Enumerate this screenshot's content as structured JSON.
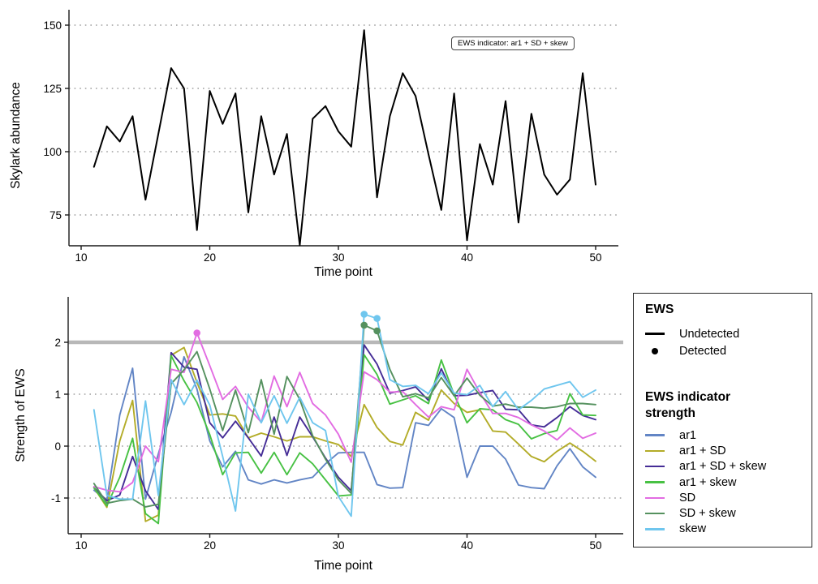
{
  "chart_data": [
    {
      "type": "line",
      "panel": "top",
      "title": "",
      "xlabel": "Time point",
      "ylabel": "Skylark abundance",
      "annotation": "EWS indicator: ar1 + SD + skew",
      "xticks": [
        10,
        20,
        30,
        40,
        50
      ],
      "yticks": [
        75,
        100,
        125,
        150
      ],
      "xlim": [
        9,
        52
      ],
      "ylim": [
        63,
        152
      ],
      "grid": "dotted-horizontal",
      "legend_position": "none",
      "x": [
        11,
        12,
        13,
        14,
        15,
        16,
        17,
        18,
        19,
        20,
        21,
        22,
        23,
        24,
        25,
        26,
        27,
        28,
        29,
        30,
        31,
        32,
        33,
        34,
        35,
        36,
        37,
        38,
        39,
        40,
        41,
        42,
        43,
        44,
        45,
        46,
        47,
        48,
        49,
        50
      ],
      "series": [
        {
          "name": "Skylark abundance",
          "color": "#000000",
          "values": [
            94,
            110,
            104,
            114,
            81,
            107,
            133,
            125,
            69,
            124,
            111,
            123,
            76,
            114,
            91,
            107,
            63,
            113,
            118,
            108,
            102,
            148,
            82,
            114,
            131,
            122,
            99,
            77,
            123,
            65,
            103,
            87,
            120,
            72,
            115,
            91,
            83,
            89,
            131,
            87
          ]
        }
      ]
    },
    {
      "type": "line",
      "panel": "bottom",
      "title": "",
      "xlabel": "Time point",
      "ylabel": "Strength of EWS",
      "xticks": [
        10,
        20,
        30,
        40,
        50
      ],
      "yticks": [
        -1,
        0,
        1,
        2
      ],
      "xlim": [
        9,
        52
      ],
      "ylim": [
        -1.7,
        2.8
      ],
      "grid": "dotted-horizontal",
      "threshold": 2,
      "threshold_color": "#b8b8b8",
      "legend_position": "right",
      "x": [
        11,
        12,
        13,
        14,
        15,
        16,
        17,
        18,
        19,
        20,
        21,
        22,
        23,
        24,
        25,
        26,
        27,
        28,
        29,
        30,
        31,
        32,
        33,
        34,
        35,
        36,
        37,
        38,
        39,
        40,
        41,
        42,
        43,
        44,
        45,
        46,
        47,
        48,
        49,
        50
      ],
      "series": [
        {
          "name": "ar1",
          "color": "#6285c5",
          "values": [
            -0.85,
            -1.05,
            0.6,
            1.5,
            -1.02,
            -0.15,
            0.65,
            1.72,
            1.1,
            0.1,
            -0.4,
            -0.1,
            -0.65,
            -0.73,
            -0.65,
            -0.71,
            -0.65,
            -0.6,
            -0.34,
            -0.13,
            -0.12,
            -0.12,
            -0.74,
            -0.81,
            -0.8,
            0.45,
            0.4,
            0.72,
            0.55,
            -0.6,
            0.0,
            0.0,
            -0.25,
            -0.75,
            -0.8,
            -0.82,
            -0.38,
            -0.05,
            -0.4,
            -0.6
          ]
        },
        {
          "name": "ar1 + SD",
          "color": "#b3ac28",
          "values": [
            -0.8,
            -1.18,
            0.1,
            0.88,
            -1.45,
            -1.33,
            1.75,
            1.9,
            1.23,
            0.6,
            0.62,
            0.58,
            0.16,
            0.25,
            0.18,
            0.1,
            0.18,
            0.18,
            0.1,
            0.03,
            -0.2,
            0.8,
            0.36,
            0.09,
            0.02,
            0.65,
            0.5,
            1.08,
            0.82,
            0.65,
            0.7,
            0.29,
            0.27,
            0.04,
            -0.2,
            -0.3,
            -0.1,
            0.06,
            -0.1,
            -0.29
          ]
        },
        {
          "name": "ar1 + SD + skew",
          "color": "#452d96",
          "values": [
            -0.8,
            -1.05,
            -0.94,
            -0.2,
            -0.86,
            -1.22,
            1.8,
            1.52,
            1.48,
            0.45,
            0.16,
            0.48,
            0.16,
            -0.19,
            0.56,
            -0.18,
            0.56,
            0.18,
            -0.23,
            -0.6,
            -0.86,
            1.95,
            1.58,
            1.02,
            1.07,
            1.14,
            0.88,
            1.49,
            0.97,
            0.98,
            1.03,
            1.07,
            0.71,
            0.7,
            0.41,
            0.37,
            0.55,
            0.76,
            0.59,
            0.51
          ]
        },
        {
          "name": "ar1 + skew",
          "color": "#47c143",
          "values": [
            -0.8,
            -1.15,
            -0.6,
            0.15,
            -1.3,
            -1.49,
            1.74,
            1.26,
            0.84,
            0.22,
            -0.55,
            -0.13,
            -0.12,
            -0.52,
            -0.12,
            -0.55,
            -0.13,
            -0.34,
            -0.65,
            -0.96,
            -0.94,
            1.76,
            1.38,
            0.81,
            0.89,
            0.97,
            0.82,
            1.66,
            0.99,
            0.45,
            0.72,
            0.7,
            0.51,
            0.42,
            0.14,
            0.24,
            0.3,
            1.01,
            0.6,
            0.59
          ]
        },
        {
          "name": "SD",
          "color": "#e26ce2",
          "values": [
            -0.78,
            -0.85,
            -0.88,
            -0.7,
            0.0,
            -0.3,
            1.48,
            1.42,
            2.18,
            1.55,
            0.9,
            1.15,
            0.75,
            0.46,
            1.35,
            0.76,
            1.42,
            0.82,
            0.6,
            0.23,
            -0.31,
            1.43,
            1.28,
            1.04,
            1.05,
            0.8,
            0.56,
            0.76,
            0.7,
            1.48,
            1.03,
            0.63,
            0.63,
            0.55,
            0.41,
            0.29,
            0.12,
            0.35,
            0.15,
            0.25
          ]
        },
        {
          "name": "SD + skew",
          "color": "#55915f",
          "values": [
            -0.72,
            -1.1,
            -1.05,
            -1.02,
            -1.17,
            -1.12,
            1.2,
            1.47,
            1.82,
            1.1,
            0.3,
            1.08,
            0.26,
            1.28,
            0.23,
            1.34,
            0.9,
            0.2,
            -0.25,
            -0.65,
            -0.91,
            2.33,
            2.22,
            1.48,
            0.95,
            1.01,
            0.93,
            1.32,
            0.97,
            1.31,
            0.98,
            0.77,
            0.81,
            0.75,
            0.75,
            0.73,
            0.76,
            0.82,
            0.82,
            0.8
          ]
        },
        {
          "name": "skew",
          "color": "#6fc6ee",
          "values": [
            0.7,
            -0.95,
            -1.02,
            -1.02,
            0.87,
            -0.95,
            1.28,
            0.8,
            1.27,
            0.79,
            -0.2,
            -1.25,
            1.0,
            0.45,
            0.97,
            0.44,
            0.94,
            0.45,
            0.3,
            -0.97,
            -1.35,
            2.54,
            2.46,
            1.28,
            1.15,
            1.17,
            1.01,
            1.41,
            1.02,
            0.99,
            1.17,
            0.76,
            1.05,
            0.7,
            0.88,
            1.1,
            1.17,
            1.24,
            0.94,
            1.08
          ]
        }
      ],
      "detected_points": [
        {
          "series": "SD",
          "x": 19,
          "y": 2.18
        },
        {
          "series": "SD + skew",
          "x": 32,
          "y": 2.33
        },
        {
          "series": "SD + skew",
          "x": 33,
          "y": 2.22
        },
        {
          "series": "skew",
          "x": 32,
          "y": 2.54
        },
        {
          "series": "skew",
          "x": 33,
          "y": 2.46
        }
      ]
    }
  ],
  "legend": {
    "ews_title": "EWS",
    "ews_items": [
      {
        "label": "Undetected",
        "marker": "line",
        "color": "#000000"
      },
      {
        "label": "Detected",
        "marker": "point",
        "color": "#000000"
      }
    ],
    "indicator_title": "EWS indicator strength",
    "indicator_items": [
      {
        "label": "ar1",
        "color": "#6285c5"
      },
      {
        "label": "ar1 + SD",
        "color": "#b3ac28"
      },
      {
        "label": "ar1 + SD + skew",
        "color": "#452d96"
      },
      {
        "label": "ar1 + skew",
        "color": "#47c143"
      },
      {
        "label": "SD",
        "color": "#e26ce2"
      },
      {
        "label": "SD + skew",
        "color": "#55915f"
      },
      {
        "label": "skew",
        "color": "#6fc6ee"
      }
    ]
  }
}
